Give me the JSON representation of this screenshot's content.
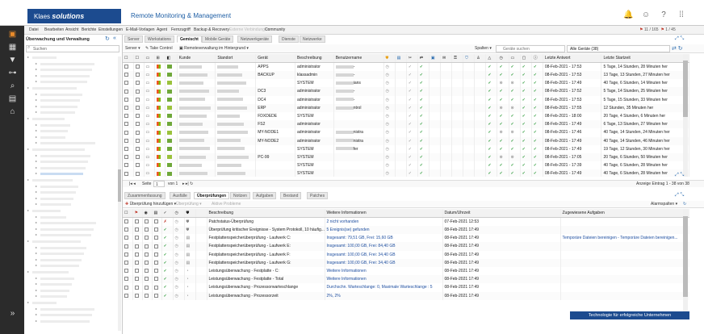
{
  "app": {
    "logo_text": "Klaes",
    "logo_brand": "solutions",
    "product": "Remote Monitoring & Management"
  },
  "header_icons": [
    "bell-icon",
    "user-icon",
    "help-icon",
    "apps-grid-icon"
  ],
  "leftnav": [
    "monitor-icon",
    "tiles-icon",
    "filter-icon",
    "tree-icon",
    "search-report-icon",
    "chat-icon",
    "home-icon",
    "expand-icon"
  ],
  "menu": [
    "Datei",
    "Bearbeiten",
    "Ansicht",
    "Berichte",
    "Einstellungen",
    "E-Mail-Vorlagen",
    "Agent",
    "Fernzugriff",
    "Backup & Recovery",
    "Externe Verbindungen",
    "Community"
  ],
  "counter": {
    "alerts": "11 / 165",
    "total": "1 / 45"
  },
  "sidebar": {
    "title": "Überwachung und Verwaltung",
    "search": "Suchen"
  },
  "tabs1": [
    "Server",
    "Workstations",
    "Gemischt",
    "Mobile Geräte",
    "Netzwerkgeräte",
    "Dienste",
    "Netzwerke"
  ],
  "toolbar1": {
    "server": "Server ▾",
    "take_control": "Take Control",
    "remote": "Remoteverwaltung im Hintergrund ▾",
    "spalten": "Spalten ▾",
    "search": "Geräte suchen",
    "filter": "Alle Geräte (38)"
  },
  "grid1": {
    "headers": [
      "Kunde",
      "Standort",
      "Gerät",
      "Beschreibung",
      "Benutzername",
      "Letzte Antwort",
      "Letzte Startzeit"
    ],
    "rows": [
      [
        "APPS",
        "administrator",
        "-",
        "08-Feb-2021 - 17:53",
        "5 Tage, 14 Stunden, 28 Minuten her"
      ],
      [
        "BACKUP",
        "klassadmin",
        "-",
        "08-Feb-2021 - 17:53",
        "13 Tage, 13 Stunden, 27 Minuten her"
      ],
      [
        "",
        "SYSTEM",
        "ians",
        "08-Feb-2021 - 17:49",
        "40 Tage, 6 Stunden, 14 Minuten her"
      ],
      [
        "DC3",
        "administrator",
        "-",
        "08-Feb-2021 - 17:52",
        "5 Tage, 14 Stunden, 25 Minuten her"
      ],
      [
        "DC4",
        "administrator",
        "-",
        "08-Feb-2021 - 17:53",
        "5 Tage, 15 Stunden, 33 Minuten her"
      ],
      [
        "ERP",
        "administrator",
        "ntrol",
        "08-Feb-2021 - 17:55",
        "12 Stunden, 35 Minuten her"
      ],
      [
        "FDXDEDE",
        "SYSTEM",
        "",
        "08-Feb-2021 - 18:00",
        "20 Tage, 4 Stunden, 6 Minuten her"
      ],
      [
        "FS2",
        "administrator",
        "",
        "08-Feb-2021 - 17:49",
        "6 Tage, 13 Stunden, 27 Minuten her"
      ],
      [
        "MY-NODE1",
        "administrator",
        "nistra",
        "08-Feb-2021 - 17:46",
        "40 Tage, 14 Stunden, 24 Minuten her"
      ],
      [
        "MY-NODE2",
        "administrator",
        "nistra",
        "08-Feb-2021 - 17:49",
        "40 Tage, 14 Stunden, 46 Minuten her"
      ],
      [
        "",
        "SYSTEM",
        "fer",
        "08-Feb-2021 - 17:49",
        "19 Tage, 12 Stunden, 30 Minuten her"
      ],
      [
        "PC-99",
        "SYSTEM",
        "",
        "08-Feb-2021 - 17:05",
        "20 Tage, 6 Stunden, 50 Minuten her"
      ],
      [
        "",
        "SYSTEM",
        "",
        "08-Feb-2021 - 17:39",
        "40 Tage, 6 Stunden, 28 Minuten her"
      ],
      [
        "",
        "SYSTEM",
        "",
        "08-Feb-2021 - 17:49",
        "40 Tage, 6 Stunden, 28 Minuten her"
      ],
      [
        "",
        "SYSTEM",
        "",
        "08-Feb-2021 - 17:49",
        "40 Tage, 6 Stunden, 25 Minuten her"
      ]
    ]
  },
  "pager": {
    "label": "Seite",
    "page": "1",
    "of": "von 1",
    "summary": "Anzeige Eintrag 1 - 38 von 38"
  },
  "tabs2": [
    "Zusammenfassung",
    "Ausfälle",
    "Überprüfungen",
    "Notizen",
    "Aufgaben",
    "Bestand",
    "Patches"
  ],
  "toolbar2": {
    "add": "Überprüfung hinzufügen ▾",
    "check": "Überprüfung ▾",
    "all": "Aktive Probleme",
    "columns": "Alarmspalten ▾"
  },
  "grid2": {
    "headers": [
      "Beschreibung",
      "Weitere Informationen",
      "Datum/Uhrzeit",
      "Zugewiesene Aufgaben"
    ],
    "rows": [
      [
        "Patchstatus-Überprüfung",
        "2 nicht vorhanden",
        "07-Feb-2021 12:53",
        ""
      ],
      [
        "Überprüfung kritischer Ereignisse - System Protokoll, 10 häufig...",
        "5 Ereignis(se) gefunden",
        "08-Feb-2021 17:49",
        ""
      ],
      [
        "Festplattenspeicherüberprüfung - Laufwerk C:",
        "Insgesamt: 79,51 GB, Frei: 15,60 GB",
        "08-Feb-2021 17:49",
        "Temporäre Dateien bereinigen - Temporäre Dateien bereinigen..."
      ],
      [
        "Festplattenspeicherüberprüfung - Laufwerk E:",
        "Insgesamt: 100,00 GB, Frei: 84,40 GB",
        "08-Feb-2021 17:49",
        ""
      ],
      [
        "Festplattenspeicherüberprüfung - Laufwerk F:",
        "Insgesamt: 100,00 GB, Frei: 34,40 GB",
        "08-Feb-2021 17:49",
        ""
      ],
      [
        "Festplattenspeicherüberprüfung - Laufwerk G:",
        "Insgesamt: 100,00 GB, Frei: 34,40 GB",
        "08-Feb-2021 17:49",
        ""
      ],
      [
        "Leistungsüberwachung - Festplatte - C:",
        "Weitere Informationen",
        "08-Feb-2021 17:49",
        ""
      ],
      [
        "Leistungsüberwachung - Festplatte - Total",
        "Weitere Informationen",
        "08-Feb-2021 17:49",
        ""
      ],
      [
        "Leistungsüberwachung - Prozessorwarteschlange",
        "Durchschn. Warteschlange: 0, Maximale Warteschlange : 5",
        "08-Feb-2021 17:49",
        ""
      ],
      [
        "Leistungsüberwachung - Prozessorzeit",
        "2%, 2%",
        "08-Feb-2021 17:49",
        ""
      ]
    ]
  },
  "footer": "Technologie für erfolgreiche Unternehmen"
}
